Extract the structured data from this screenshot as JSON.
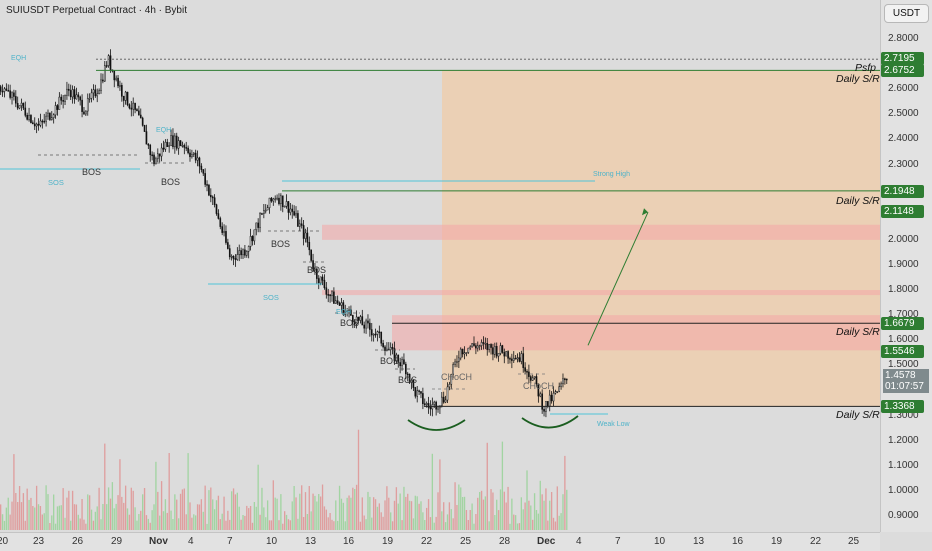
{
  "header": {
    "title": "SUIUSDT Perpetual Contract · 4h · Bybit"
  },
  "currency_button": "USDT",
  "price_ticks": [
    "2.8000",
    "2.7000",
    "2.6000",
    "2.5000",
    "2.4000",
    "2.3000",
    "2.2000",
    "2.1000",
    "2.0000",
    "1.9000",
    "1.8000",
    "1.7000",
    "1.6000",
    "1.5000",
    "1.4000",
    "1.3000",
    "1.2000",
    "1.1000",
    "1.0000",
    "0.9000"
  ],
  "price_tags": [
    {
      "text": "2.7195",
      "color": "#2e7d32"
    },
    {
      "text": "2.6752",
      "color": "#2e7d32"
    },
    {
      "text": "2.1948",
      "color": "#2e7d32"
    },
    {
      "text": "2.1148",
      "color": "#2e7d32"
    },
    {
      "text": "1.6679",
      "color": "#2e7d32"
    },
    {
      "text": "1.5546",
      "color": "#2e7d32"
    },
    {
      "text": "1.3368",
      "color": "#2e7d32"
    }
  ],
  "current": {
    "price": "1.4578",
    "countdown": "01:07:57"
  },
  "time_labels": [
    "20",
    "23",
    "26",
    "29",
    "Nov",
    "4",
    "7",
    "10",
    "13",
    "16",
    "19",
    "22",
    "25",
    "28",
    "Dec",
    "4",
    "7",
    "10",
    "13",
    "16",
    "19",
    "22",
    "25"
  ],
  "sr_labels": {
    "psfp": "Psfp",
    "daily_sr_1": "Daily S/R",
    "daily_sr_2": "Daily S/R",
    "daily_sr_3": "Daily S/R",
    "daily_sr_4": "Daily S/R"
  },
  "annotations": {
    "bos_1": "BOS",
    "bos_2": "BOS",
    "bos_3": "BOS",
    "bos_4": "BOS",
    "bos_5": "BOS",
    "bos_6": "BOS",
    "bos_7": "BOS",
    "sos_1": "SOS",
    "sos_2": "SOS",
    "eqh_1": "EQH",
    "eqh_2": "EQH",
    "eqh_3": "EQH",
    "strong_high": "Strong High",
    "weak_low": "Weak Low",
    "choch_1": "CHoCH",
    "choch_2": "CHoCH"
  },
  "colors": {
    "up": "#26a69a",
    "down": "#222222",
    "sr_line": "#2e7d32",
    "zone": "#f2c9a0",
    "supply": "#f4a6a6",
    "arrow": "#2e7d32",
    "bos_line": "#4fc3d9"
  },
  "chart_data": {
    "type": "candlestick",
    "symbol": "SUIUSDT",
    "interval": "4h",
    "exchange": "Bybit",
    "y_range": [
      0.85,
      2.88
    ],
    "x_labels": [
      "20",
      "23",
      "26",
      "29",
      "Nov",
      "4",
      "7",
      "10",
      "13",
      "16",
      "19",
      "22",
      "25",
      "28",
      "Dec",
      "4",
      "7",
      "10",
      "13",
      "16",
      "19",
      "22",
      "25"
    ],
    "levels": [
      {
        "name": "Psfp",
        "value": 2.7195
      },
      {
        "name": "Daily S/R",
        "value": 2.6752
      },
      {
        "name": "Daily S/R",
        "value": 2.1948
      },
      {
        "name": "Daily S/R",
        "value": 1.6679
      },
      {
        "name": "Daily S/R",
        "value": 1.3368
      }
    ],
    "supply_zones": [
      [
        2.0,
        2.06
      ],
      [
        1.78,
        1.8
      ],
      [
        1.56,
        1.7
      ]
    ],
    "target_zone": [
      1.3368,
      2.6752
    ],
    "price_path_estimated": [
      [
        0,
        2.61
      ],
      [
        3,
        2.52
      ],
      [
        5,
        2.45
      ],
      [
        7,
        2.52
      ],
      [
        9,
        2.6
      ],
      [
        11,
        2.52
      ],
      [
        13,
        2.62
      ],
      [
        14,
        2.72
      ],
      [
        16,
        2.58
      ],
      [
        18,
        2.49
      ],
      [
        20,
        2.31
      ],
      [
        22,
        2.4
      ],
      [
        24,
        2.38
      ],
      [
        26,
        2.3
      ],
      [
        28,
        2.13
      ],
      [
        30,
        1.93
      ],
      [
        32,
        1.96
      ],
      [
        34,
        2.09
      ],
      [
        36,
        2.18
      ],
      [
        38,
        2.12
      ],
      [
        40,
        2.0
      ],
      [
        41,
        1.88
      ],
      [
        43,
        1.78
      ],
      [
        45,
        1.72
      ],
      [
        47,
        1.67
      ],
      [
        49,
        1.63
      ],
      [
        51,
        1.55
      ],
      [
        53,
        1.49
      ],
      [
        54,
        1.4
      ],
      [
        56,
        1.33
      ],
      [
        58,
        1.37
      ],
      [
        60,
        1.56
      ],
      [
        62,
        1.58
      ],
      [
        64,
        1.57
      ],
      [
        66,
        1.55
      ],
      [
        68,
        1.53
      ],
      [
        70,
        1.42
      ],
      [
        71,
        1.33
      ],
      [
        73,
        1.4
      ],
      [
        74,
        1.46
      ]
    ],
    "projection": {
      "from": 1.58,
      "to": 2.11
    }
  }
}
